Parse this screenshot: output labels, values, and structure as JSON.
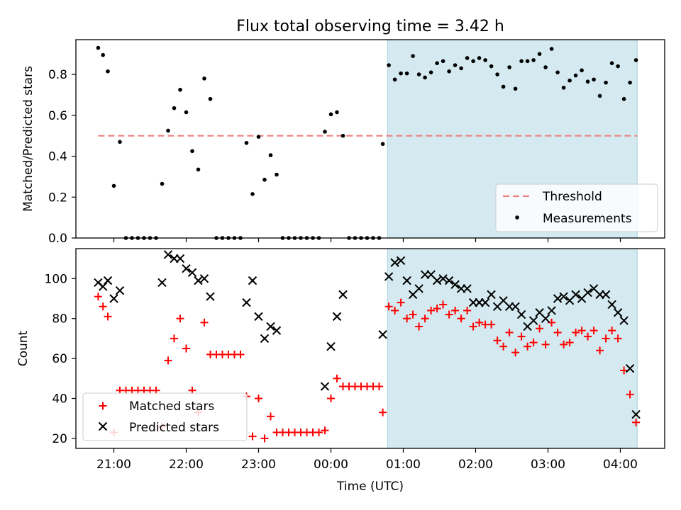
{
  "figure": {
    "title": "Flux total observing time = 3.42 h"
  },
  "chart_data": [
    {
      "type": "scatter",
      "panel": "top",
      "title": "Flux total observing time = 3.42 h",
      "xlabel": "",
      "ylabel": "Matched/Predicted stars",
      "x_ticks": [
        "21:00",
        "22:00",
        "23:00",
        "00:00",
        "01:00",
        "02:00",
        "03:00",
        "04:00"
      ],
      "ylim": [
        0,
        0.97
      ],
      "y_ticks": [
        "0.0",
        "0.2",
        "0.4",
        "0.6",
        "0.8"
      ],
      "shaded_span": [
        "00:47",
        "04:14"
      ],
      "shade_color": "#d4eaf0",
      "threshold": {
        "name": "Threshold",
        "value": 0.5,
        "x_range": [
          "20:47",
          "04:14"
        ],
        "color": "#f08080",
        "style": "dashed"
      },
      "legend": {
        "position": "lower-right",
        "entries": [
          "Threshold",
          "Measurements"
        ]
      },
      "series": [
        {
          "name": "Measurements",
          "marker": "dot",
          "color": "#000000",
          "points": [
            [
              "20:47",
              0.93
            ],
            [
              "20:51",
              0.895
            ],
            [
              "20:55",
              0.815
            ],
            [
              "21:00",
              0.255
            ],
            [
              "21:05",
              0.47
            ],
            [
              "21:10",
              0.0
            ],
            [
              "21:15",
              0.0
            ],
            [
              "21:20",
              0.0
            ],
            [
              "21:25",
              0.0
            ],
            [
              "21:30",
              0.0
            ],
            [
              "21:35",
              0.0
            ],
            [
              "21:40",
              0.265
            ],
            [
              "21:45",
              0.525
            ],
            [
              "21:50",
              0.635
            ],
            [
              "21:55",
              0.725
            ],
            [
              "22:00",
              0.615
            ],
            [
              "22:05",
              0.425
            ],
            [
              "22:10",
              0.335
            ],
            [
              "22:15",
              0.78
            ],
            [
              "22:20",
              0.68
            ],
            [
              "22:25",
              0.0
            ],
            [
              "22:30",
              0.0
            ],
            [
              "22:35",
              0.0
            ],
            [
              "22:40",
              0.0
            ],
            [
              "22:45",
              0.0
            ],
            [
              "22:50",
              0.465
            ],
            [
              "22:55",
              0.215
            ],
            [
              "23:00",
              0.495
            ],
            [
              "23:05",
              0.285
            ],
            [
              "23:10",
              0.405
            ],
            [
              "23:15",
              0.31
            ],
            [
              "23:20",
              0.0
            ],
            [
              "23:25",
              0.0
            ],
            [
              "23:30",
              0.0
            ],
            [
              "23:35",
              0.0
            ],
            [
              "23:40",
              0.0
            ],
            [
              "23:45",
              0.0
            ],
            [
              "23:50",
              0.0
            ],
            [
              "23:55",
              0.52
            ],
            [
              "00:00",
              0.605
            ],
            [
              "00:05",
              0.615
            ],
            [
              "00:10",
              0.5
            ],
            [
              "00:15",
              0.0
            ],
            [
              "00:20",
              0.0
            ],
            [
              "00:25",
              0.0
            ],
            [
              "00:30",
              0.0
            ],
            [
              "00:35",
              0.0
            ],
            [
              "00:40",
              0.0
            ],
            [
              "00:43",
              0.46
            ],
            [
              "00:48",
              0.845
            ],
            [
              "00:53",
              0.775
            ],
            [
              "00:58",
              0.805
            ],
            [
              "01:03",
              0.805
            ],
            [
              "01:08",
              0.89
            ],
            [
              "01:13",
              0.8
            ],
            [
              "01:18",
              0.785
            ],
            [
              "01:23",
              0.81
            ],
            [
              "01:28",
              0.855
            ],
            [
              "01:33",
              0.865
            ],
            [
              "01:38",
              0.815
            ],
            [
              "01:43",
              0.845
            ],
            [
              "01:48",
              0.83
            ],
            [
              "01:53",
              0.88
            ],
            [
              "01:58",
              0.865
            ],
            [
              "02:03",
              0.88
            ],
            [
              "02:08",
              0.87
            ],
            [
              "02:13",
              0.84
            ],
            [
              "02:18",
              0.8
            ],
            [
              "02:23",
              0.74
            ],
            [
              "02:28",
              0.835
            ],
            [
              "02:33",
              0.73
            ],
            [
              "02:38",
              0.865
            ],
            [
              "02:43",
              0.865
            ],
            [
              "02:48",
              0.87
            ],
            [
              "02:53",
              0.9
            ],
            [
              "02:58",
              0.835
            ],
            [
              "03:03",
              0.925
            ],
            [
              "03:08",
              0.81
            ],
            [
              "03:13",
              0.735
            ],
            [
              "03:18",
              0.77
            ],
            [
              "03:23",
              0.795
            ],
            [
              "03:28",
              0.82
            ],
            [
              "03:33",
              0.765
            ],
            [
              "03:38",
              0.775
            ],
            [
              "03:43",
              0.695
            ],
            [
              "03:48",
              0.76
            ],
            [
              "03:53",
              0.855
            ],
            [
              "03:58",
              0.84
            ],
            [
              "04:03",
              0.68
            ],
            [
              "04:08",
              0.76
            ],
            [
              "04:13",
              0.87
            ]
          ]
        }
      ]
    },
    {
      "type": "scatter",
      "panel": "bottom",
      "xlabel": "Time (UTC)",
      "ylabel": "Count",
      "x_ticks": [
        "21:00",
        "22:00",
        "23:00",
        "00:00",
        "01:00",
        "02:00",
        "03:00",
        "04:00"
      ],
      "ylim": [
        15,
        115
      ],
      "y_ticks": [
        "20",
        "40",
        "60",
        "80",
        "100"
      ],
      "shaded_span": [
        "00:47",
        "04:14"
      ],
      "shade_color": "#d4eaf0",
      "legend": {
        "position": "lower-left",
        "entries": [
          "Matched stars",
          "Predicted stars"
        ]
      },
      "series": [
        {
          "name": "Matched stars",
          "marker": "plus",
          "color": "#ff0000",
          "points": [
            [
              "20:47",
              91
            ],
            [
              "20:51",
              86
            ],
            [
              "20:55",
              81
            ],
            [
              "21:00",
              23
            ],
            [
              "21:05",
              44
            ],
            [
              "21:10",
              44
            ],
            [
              "21:15",
              44
            ],
            [
              "21:20",
              44
            ],
            [
              "21:25",
              44
            ],
            [
              "21:30",
              44
            ],
            [
              "21:35",
              44
            ],
            [
              "21:40",
              26
            ],
            [
              "21:45",
              59
            ],
            [
              "21:50",
              70
            ],
            [
              "21:55",
              80
            ],
            [
              "22:00",
              65
            ],
            [
              "22:05",
              44
            ],
            [
              "22:10",
              33
            ],
            [
              "22:15",
              78
            ],
            [
              "22:20",
              62
            ],
            [
              "22:25",
              62
            ],
            [
              "22:30",
              62
            ],
            [
              "22:35",
              62
            ],
            [
              "22:40",
              62
            ],
            [
              "22:45",
              62
            ],
            [
              "22:50",
              41
            ],
            [
              "22:55",
              21
            ],
            [
              "23:00",
              40
            ],
            [
              "23:05",
              20
            ],
            [
              "23:10",
              31
            ],
            [
              "23:15",
              23
            ],
            [
              "23:20",
              23
            ],
            [
              "23:25",
              23
            ],
            [
              "23:30",
              23
            ],
            [
              "23:35",
              23
            ],
            [
              "23:40",
              23
            ],
            [
              "23:45",
              23
            ],
            [
              "23:50",
              23
            ],
            [
              "23:55",
              24
            ],
            [
              "00:00",
              40
            ],
            [
              "00:05",
              50
            ],
            [
              "00:10",
              46
            ],
            [
              "00:15",
              46
            ],
            [
              "00:20",
              46
            ],
            [
              "00:25",
              46
            ],
            [
              "00:30",
              46
            ],
            [
              "00:35",
              46
            ],
            [
              "00:40",
              46
            ],
            [
              "00:43",
              33
            ],
            [
              "00:48",
              86
            ],
            [
              "00:53",
              84
            ],
            [
              "00:58",
              88
            ],
            [
              "01:03",
              80
            ],
            [
              "01:08",
              82
            ],
            [
              "01:13",
              76
            ],
            [
              "01:18",
              80
            ],
            [
              "01:23",
              84
            ],
            [
              "01:28",
              85
            ],
            [
              "01:33",
              87
            ],
            [
              "01:38",
              82
            ],
            [
              "01:43",
              84
            ],
            [
              "01:48",
              80
            ],
            [
              "01:53",
              84
            ],
            [
              "01:58",
              76
            ],
            [
              "02:03",
              78
            ],
            [
              "02:08",
              77
            ],
            [
              "02:13",
              77
            ],
            [
              "02:18",
              69
            ],
            [
              "02:23",
              66
            ],
            [
              "02:28",
              73
            ],
            [
              "02:33",
              63
            ],
            [
              "02:38",
              71
            ],
            [
              "02:43",
              66
            ],
            [
              "02:48",
              68
            ],
            [
              "02:53",
              75
            ],
            [
              "02:58",
              67
            ],
            [
              "03:03",
              78
            ],
            [
              "03:08",
              73
            ],
            [
              "03:13",
              67
            ],
            [
              "03:18",
              68
            ],
            [
              "03:23",
              73
            ],
            [
              "03:28",
              74
            ],
            [
              "03:33",
              71
            ],
            [
              "03:38",
              74
            ],
            [
              "03:43",
              64
            ],
            [
              "03:48",
              70
            ],
            [
              "03:53",
              74
            ],
            [
              "03:58",
              70
            ],
            [
              "04:03",
              54
            ],
            [
              "04:08",
              42
            ],
            [
              "04:13",
              28
            ]
          ]
        },
        {
          "name": "Predicted stars",
          "marker": "x",
          "color": "#000000",
          "points": [
            [
              "20:47",
              98
            ],
            [
              "20:51",
              96
            ],
            [
              "20:55",
              99
            ],
            [
              "21:00",
              90
            ],
            [
              "21:05",
              94
            ],
            [
              "21:40",
              98
            ],
            [
              "21:45",
              112
            ],
            [
              "21:50",
              110
            ],
            [
              "21:55",
              110
            ],
            [
              "22:00",
              105
            ],
            [
              "22:05",
              103
            ],
            [
              "22:10",
              99
            ],
            [
              "22:15",
              100
            ],
            [
              "22:20",
              91
            ],
            [
              "22:50",
              88
            ],
            [
              "22:55",
              99
            ],
            [
              "23:00",
              81
            ],
            [
              "23:05",
              70
            ],
            [
              "23:10",
              76
            ],
            [
              "23:15",
              74
            ],
            [
              "23:55",
              46
            ],
            [
              "00:00",
              66
            ],
            [
              "00:05",
              81
            ],
            [
              "00:10",
              92
            ],
            [
              "00:43",
              72
            ],
            [
              "00:48",
              101
            ],
            [
              "00:53",
              108
            ],
            [
              "00:58",
              109
            ],
            [
              "01:03",
              99
            ],
            [
              "01:08",
              92
            ],
            [
              "01:13",
              95
            ],
            [
              "01:18",
              102
            ],
            [
              "01:23",
              102
            ],
            [
              "01:28",
              99
            ],
            [
              "01:33",
              100
            ],
            [
              "01:38",
              99
            ],
            [
              "01:43",
              97
            ],
            [
              "01:48",
              95
            ],
            [
              "01:53",
              95
            ],
            [
              "01:58",
              88
            ],
            [
              "02:03",
              88
            ],
            [
              "02:08",
              88
            ],
            [
              "02:13",
              92
            ],
            [
              "02:18",
              86
            ],
            [
              "02:23",
              89
            ],
            [
              "02:28",
              86
            ],
            [
              "02:33",
              86
            ],
            [
              "02:38",
              82
            ],
            [
              "02:43",
              76
            ],
            [
              "02:48",
              79
            ],
            [
              "02:53",
              83
            ],
            [
              "02:58",
              80
            ],
            [
              "03:03",
              84
            ],
            [
              "03:08",
              90
            ],
            [
              "03:13",
              91
            ],
            [
              "03:18",
              89
            ],
            [
              "03:23",
              92
            ],
            [
              "03:28",
              90
            ],
            [
              "03:33",
              93
            ],
            [
              "03:38",
              95
            ],
            [
              "03:43",
              92
            ],
            [
              "03:48",
              92
            ],
            [
              "03:53",
              87
            ],
            [
              "03:58",
              83
            ],
            [
              "04:03",
              79
            ],
            [
              "04:08",
              55
            ],
            [
              "04:13",
              32
            ]
          ]
        }
      ]
    }
  ]
}
